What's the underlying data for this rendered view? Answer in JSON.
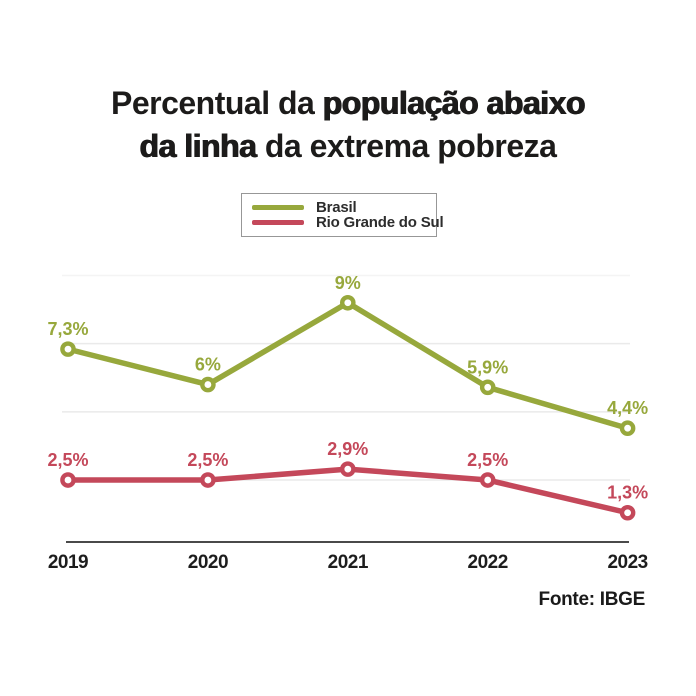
{
  "title": {
    "line1": {
      "regular": "Percentual da ",
      "bold": "população abaixo"
    },
    "line2": {
      "bold": "da linha",
      "regular": " da extrema pobreza"
    }
  },
  "legend": {
    "items": [
      {
        "label": "Brasil",
        "color": "#97a83c"
      },
      {
        "label": "Rio Grande do Sul",
        "color": "#c4485a"
      }
    ]
  },
  "source": "Fonte: IBGE",
  "colors": {
    "background": "#ffffff",
    "title_text": "#1c1b1a",
    "axis_line": "#4a4a4a",
    "gridline": "#eaeaea",
    "gridline_faint": "#f4f4f4",
    "tick_text": "#1d1d1d",
    "brasil_series": "#97a83c",
    "rio_grande_do_sul_series": "#c4485a"
  },
  "chart_data": {
    "type": "line",
    "title": "Percentual da população abaixo da linha da extrema pobreza",
    "categories": [
      "2019",
      "2020",
      "2021",
      "2022",
      "2023"
    ],
    "series": [
      {
        "name": "Brasil",
        "color": "#97a83c",
        "values": [
          7.3,
          6,
          9,
          5.9,
          4.4
        ],
        "labels": [
          "7,3%",
          "6%",
          "9%",
          "5,9%",
          "4,4%"
        ]
      },
      {
        "name": "Rio Grande do Sul",
        "color": "#c4485a",
        "values": [
          2.5,
          2.5,
          2.9,
          2.5,
          1.3
        ],
        "labels": [
          "2,5%",
          "2,5%",
          "2,9%",
          "2,5%",
          "1,3%"
        ]
      }
    ],
    "xlabel": "",
    "ylabel": "",
    "ylim": [
      0,
      10
    ],
    "gridline_values": [
      2.5,
      5,
      7.5,
      10
    ],
    "grid": true,
    "legend_position": "top",
    "marker_style": "open-circle",
    "source": "Fonte: IBGE"
  }
}
